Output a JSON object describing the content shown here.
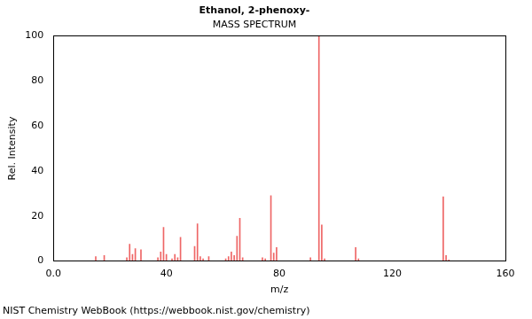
{
  "chart_data": {
    "type": "bar",
    "title": "Ethanol, 2-phenoxy-",
    "subtitle": "MASS SPECTRUM",
    "x_label": "m/z",
    "y_label": "Rel. Intensity",
    "footer": "NIST Chemistry WebBook (https://webbook.nist.gov/chemistry)",
    "x": [
      15,
      18,
      26,
      27,
      28,
      29,
      31,
      37,
      38,
      39,
      40,
      42,
      43,
      44,
      45,
      50,
      51,
      52,
      53,
      55,
      61,
      62,
      63,
      64,
      65,
      66,
      67,
      74,
      75,
      77,
      78,
      79,
      91,
      94,
      95,
      96,
      107,
      108,
      138,
      139,
      140
    ],
    "values": [
      2,
      2.5,
      1.5,
      7.5,
      3,
      5.5,
      5,
      1.5,
      4,
      15,
      3,
      1,
      3,
      1.5,
      10.5,
      6.5,
      16.5,
      2,
      1,
      2,
      1,
      2,
      4,
      2.5,
      11,
      19,
      1.5,
      1.5,
      1,
      29,
      3.5,
      6,
      1.5,
      100,
      16,
      1,
      6,
      1,
      28.5,
      2.5,
      0.5
    ],
    "color": "#ee6666",
    "xlim": [
      0,
      160
    ],
    "xticks": [
      {
        "value": 0,
        "label": "0.0"
      },
      40,
      80,
      120,
      160
    ],
    "ylim": [
      0,
      100
    ],
    "yticks": [
      0,
      20,
      40,
      60,
      80,
      100
    ],
    "grid": false
  }
}
